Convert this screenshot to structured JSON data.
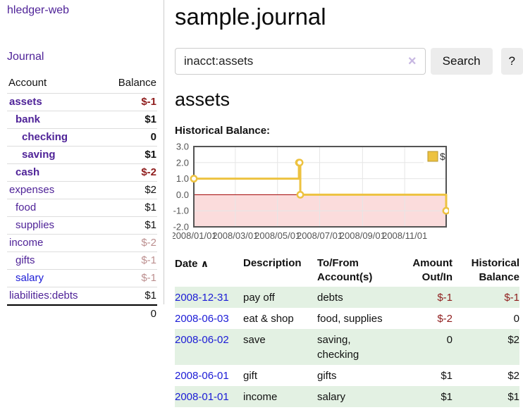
{
  "colors": {
    "accent_purple": "#4f2398",
    "link_blue": "#1b1bd6",
    "negative_strong": "#8f1d1d",
    "negative_muted": "#bc8f8f",
    "row_stripe_green": "#e3f1e3",
    "chart_line": "#edc240",
    "chart_negative_region": "#fbdcdc",
    "chart_zero_line": "#a40000",
    "chart_border": "#545454",
    "chart_grid": "#e6e6e6",
    "button_gray": "#ececec"
  },
  "sidebar": {
    "app_title": "hledger-web",
    "nav": {
      "journal_label": "Journal"
    },
    "accounts_table": {
      "account_header": "Account",
      "balance_header": "Balance",
      "rows": [
        {
          "name": "assets",
          "indent": 1,
          "bold": true,
          "balance": "$-1",
          "balance_style": "neg-strong"
        },
        {
          "name": "bank",
          "indent": 2,
          "bold": true,
          "balance": "$1",
          "balance_style": "pos"
        },
        {
          "name": "checking",
          "indent": 3,
          "bold": true,
          "balance": "0",
          "balance_style": "pos"
        },
        {
          "name": "saving",
          "indent": 3,
          "bold": true,
          "balance": "$1",
          "balance_style": "pos"
        },
        {
          "name": "cash",
          "indent": 2,
          "bold": true,
          "balance": "$-2",
          "balance_style": "neg-strong"
        },
        {
          "name": "expenses",
          "indent": 1,
          "bold": false,
          "balance": "$2",
          "balance_style": "pos"
        },
        {
          "name": "food",
          "indent": 2,
          "bold": false,
          "balance": "$1",
          "balance_style": "pos"
        },
        {
          "name": "supplies",
          "indent": 2,
          "bold": false,
          "balance": "$1",
          "balance_style": "pos"
        },
        {
          "name": "income",
          "indent": 1,
          "bold": false,
          "balance": "$-2",
          "balance_style": "neg-muted"
        },
        {
          "name": "gifts",
          "indent": 2,
          "bold": false,
          "balance": "$-1",
          "balance_style": "neg-muted"
        },
        {
          "name": "salary",
          "indent": 2,
          "bold": false,
          "link_style": "unvisited",
          "balance": "$-1",
          "balance_style": "neg-muted"
        },
        {
          "name": "liabilities:debts",
          "indent": 1,
          "bold": false,
          "balance": "$1",
          "balance_style": "pos"
        }
      ],
      "total": "0"
    }
  },
  "main": {
    "title": "sample.journal",
    "search": {
      "value": "inacct:assets",
      "clear_icon": "×",
      "button_label": "Search",
      "help_label": "?"
    },
    "account_heading": "assets",
    "chart_label": "Historical Balance:"
  },
  "chart_data": {
    "type": "line",
    "steps": true,
    "title": "Historical Balance",
    "series": [
      {
        "name": "$",
        "color": "#edc240",
        "points": [
          [
            "2008-01-01",
            1
          ],
          [
            "2008-06-01",
            2
          ],
          [
            "2008-06-02",
            2
          ],
          [
            "2008-06-03",
            0
          ],
          [
            "2008-12-31",
            -1
          ]
        ]
      }
    ],
    "xlim": [
      "2008-01-01",
      "2008-12-31"
    ],
    "ylim": [
      -2,
      3
    ],
    "x_tick_labels": [
      "2008/01/01",
      "2008/03/01",
      "2008/05/01",
      "2008/07/01",
      "2008/09/01",
      "2008/11/01"
    ],
    "y_tick_labels": [
      "3.0",
      "2.0",
      "1.0",
      "0.0",
      "-1.0",
      "-2.0"
    ],
    "grid": true,
    "legend_position": "top-right",
    "legend_label": "$",
    "negative_region": {
      "from": 0,
      "to": -2,
      "fill": "#fbdcdc",
      "line_color": "#a40000"
    }
  },
  "transactions_table": {
    "headers": {
      "date": "Date",
      "description": "Description",
      "accounts": "To/From Account(s)",
      "amount": "Amount Out/In",
      "balance": "Historical Balance"
    },
    "sort_icon": "∧",
    "rows": [
      {
        "date": "2008-12-31",
        "description": "pay off",
        "accounts": "debts",
        "amount": "$-1",
        "amount_negative": true,
        "balance": "$-1",
        "balance_negative": true
      },
      {
        "date": "2008-06-03",
        "description": "eat & shop",
        "accounts": "food, supplies",
        "amount": "$-2",
        "amount_negative": true,
        "balance": "0",
        "balance_negative": false
      },
      {
        "date": "2008-06-02",
        "description": "save",
        "accounts": "saving, checking",
        "amount": "0",
        "amount_negative": false,
        "balance": "$2",
        "balance_negative": false
      },
      {
        "date": "2008-06-01",
        "description": "gift",
        "accounts": "gifts",
        "amount": "$1",
        "amount_negative": false,
        "balance": "$2",
        "balance_negative": false
      },
      {
        "date": "2008-01-01",
        "description": "income",
        "accounts": "salary",
        "amount": "$1",
        "amount_negative": false,
        "balance": "$1",
        "balance_negative": false
      }
    ]
  }
}
